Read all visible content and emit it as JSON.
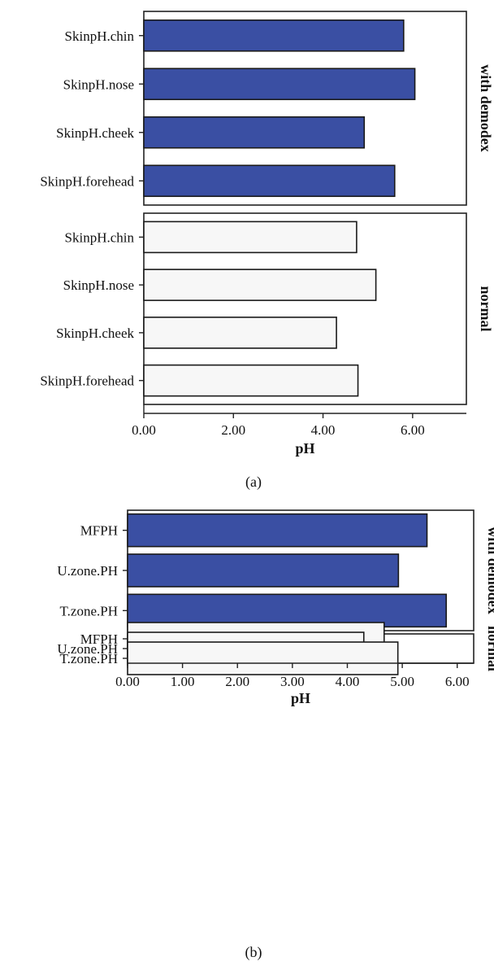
{
  "chart_data": [
    {
      "type": "bar",
      "orientation": "horizontal",
      "caption": "(a)",
      "xlabel": "pH",
      "xlim": [
        0,
        7.2
      ],
      "xticks": [
        "0.00",
        "2.00",
        "4.00",
        "6.00"
      ],
      "xtick_values": [
        0,
        2,
        4,
        6
      ],
      "groups": [
        {
          "label": "with demodex",
          "fill": "#3a4fa3",
          "categories": [
            "SkinpH.chin",
            "SkinpH.nose",
            "SkinpH.cheek",
            "SkinpH.forehead"
          ],
          "values": [
            5.8,
            6.05,
            4.92,
            5.6
          ]
        },
        {
          "label": "normal",
          "fill": "#f7f7f7",
          "categories": [
            "SkinpH.chin",
            "SkinpH.nose",
            "SkinpH.cheek",
            "SkinpH.forehead"
          ],
          "values": [
            4.75,
            5.18,
            4.3,
            4.78
          ]
        }
      ],
      "grid": false
    },
    {
      "type": "bar",
      "orientation": "horizontal",
      "caption": "(b)",
      "xlabel": "pH",
      "xlim": [
        0,
        6.3
      ],
      "xticks": [
        "0.00",
        "1.00",
        "2.00",
        "3.00",
        "4.00",
        "5.00",
        "6.00"
      ],
      "xtick_values": [
        0,
        1,
        2,
        3,
        4,
        5,
        6
      ],
      "groups": [
        {
          "label": "with demodex",
          "fill": "#3a4fa3",
          "categories": [
            "MFPH",
            "U.zone.PH",
            "T.zone.PH"
          ],
          "values": [
            5.45,
            4.93,
            5.8
          ]
        },
        {
          "label": "normal",
          "fill": "#f7f7f7",
          "categories": [
            "MFPH",
            "U.zone.PH",
            "T.zone.PH"
          ],
          "values": [
            4.67,
            4.3,
            4.92
          ]
        }
      ],
      "grid": false
    }
  ]
}
